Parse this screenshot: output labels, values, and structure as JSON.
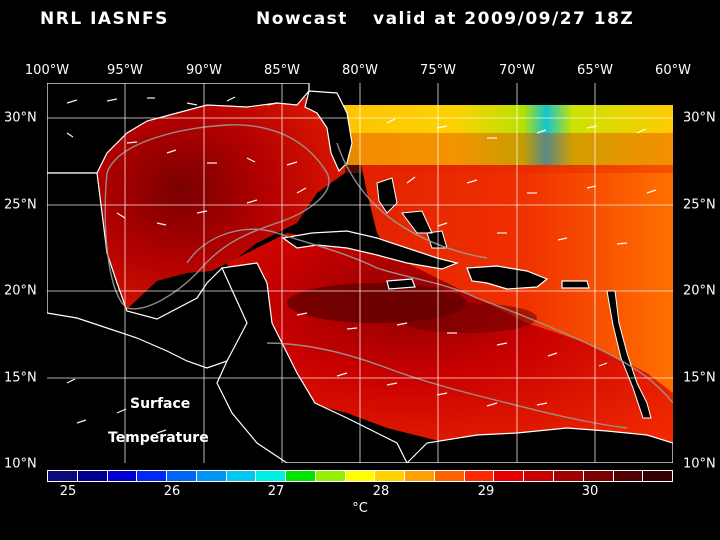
{
  "header": {
    "left": "NRL IASNFS",
    "middle": "Nowcast",
    "right": "valid at 2009/09/27 18Z"
  },
  "axes": {
    "longitude_labels": [
      "100°W",
      "95°W",
      "90°W",
      "85°W",
      "80°W",
      "75°W",
      "70°W",
      "65°W",
      "60°W"
    ],
    "latitude_labels": [
      "30°N",
      "25°N",
      "20°N",
      "15°N",
      "10°N"
    ]
  },
  "map": {
    "label_line1": "Surface",
    "label_line2": "Temperature",
    "colors": {
      "background": "#000000",
      "land": "#000000",
      "ocean_warm": "#e62000",
      "ocean_hot": "#8a0000",
      "ocean_cool": "#ffe000",
      "coastline": "#ffffff",
      "bathymetry": "#909090",
      "grid": "#ffffff"
    }
  },
  "colorbar": {
    "tick_labels": [
      "25",
      "26",
      "27",
      "28",
      "29",
      "30"
    ],
    "unit": "°C",
    "colors": [
      "#0a0a78",
      "#00008c",
      "#0000d2",
      "#0028f0",
      "#0064f5",
      "#0096f5",
      "#00c8f0",
      "#00f0e6",
      "#00e600",
      "#96f000",
      "#ffff00",
      "#ffd200",
      "#ffa000",
      "#ff6400",
      "#ff2800",
      "#e60000",
      "#c80000",
      "#a00000",
      "#780000",
      "#500000",
      "#320000"
    ]
  }
}
